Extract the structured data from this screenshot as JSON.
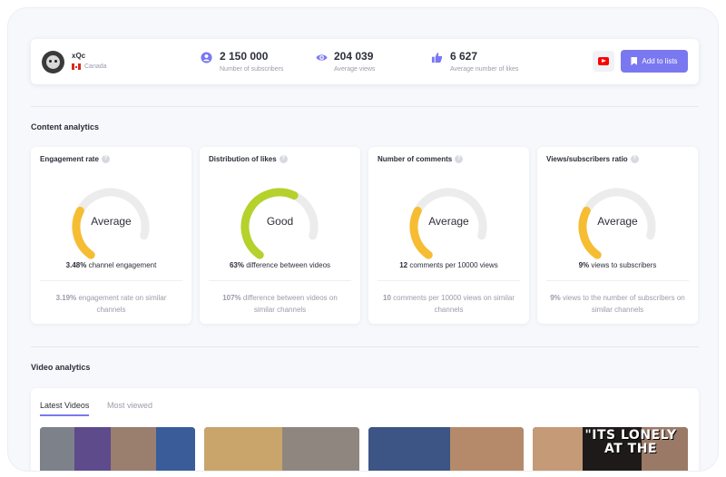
{
  "channel": {
    "name": "xQc",
    "country": "Canada"
  },
  "stats": [
    {
      "icon": "subscribers-icon",
      "value": "2 150 000",
      "label": "Number of subscribers"
    },
    {
      "icon": "eye-icon",
      "value": "204 039",
      "label": "Average views"
    },
    {
      "icon": "thumbs-up-icon",
      "value": "6 627",
      "label": "Average number of likes"
    }
  ],
  "actions": {
    "platform_icon": "youtube-icon",
    "add_label": "Add to lists"
  },
  "content_analytics": {
    "title": "Content analytics",
    "cards": [
      {
        "title": "Engagement rate",
        "rating": "Average",
        "gauge_fraction": 0.33,
        "gauge_color": "#f6bd33",
        "main_value": "3.48%",
        "main_text": " channel engagement",
        "sub_value": "3.19%",
        "sub_text": " engagement rate on similar channels"
      },
      {
        "title": "Distribution of likes",
        "rating": "Good",
        "gauge_fraction": 0.68,
        "gauge_color": "#b5d12c",
        "main_value": "63%",
        "main_text": " difference between videos",
        "sub_value": "107%",
        "sub_text": " difference between videos on similar channels"
      },
      {
        "title": "Number of comments",
        "rating": "Average",
        "gauge_fraction": 0.33,
        "gauge_color": "#f6bd33",
        "main_value": "12",
        "main_text": " comments per 10000 views",
        "sub_value": "10",
        "sub_text": " comments per 10000 views on similar channels"
      },
      {
        "title": "Views/subscribers ratio",
        "rating": "Average",
        "gauge_fraction": 0.33,
        "gauge_color": "#f6bd33",
        "main_value": "9%",
        "main_text": " views to subscribers",
        "sub_value": "9%",
        "sub_text": " views to the number of subscribers on similar channels"
      }
    ]
  },
  "video_analytics": {
    "title": "Video analytics",
    "tabs": [
      {
        "label": "Latest Videos",
        "active": true
      },
      {
        "label": "Most viewed",
        "active": false
      }
    ],
    "thumbnail_4_text": "\"ITS LONELY AT THE"
  },
  "colors": {
    "accent": "#7a78f0",
    "average": "#f6bd33",
    "good": "#b5d12c",
    "track": "#ececec"
  }
}
